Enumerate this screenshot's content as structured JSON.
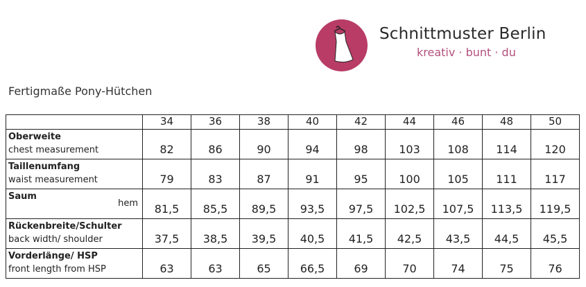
{
  "logo": {
    "brand": "Schnittmuster Berlin",
    "tagline": "kreativ · bunt · du",
    "color": "#b83c66",
    "icon": "dress-on-hanger-icon"
  },
  "title": "Fertigmaße Pony-Hütchen",
  "sizes": [
    "34",
    "36",
    "38",
    "40",
    "42",
    "44",
    "46",
    "48",
    "50"
  ],
  "rows": [
    {
      "de": "Oberweite",
      "en": "chest measurement",
      "values": [
        "82",
        "86",
        "90",
        "94",
        "98",
        "103",
        "108",
        "114",
        "120"
      ]
    },
    {
      "de": "Taillenumfang",
      "en": "waist measurement",
      "values": [
        "79",
        "83",
        "87",
        "91",
        "95",
        "100",
        "105",
        "111",
        "117"
      ]
    },
    {
      "de": "Saum",
      "en_right": "hem",
      "values": [
        "81,5",
        "85,5",
        "89,5",
        "93,5",
        "97,5",
        "102,5",
        "107,5",
        "113,5",
        "119,5"
      ]
    },
    {
      "de": "Rückenbreite/Schulter",
      "en": "back width/ shoulder",
      "values": [
        "37,5",
        "38,5",
        "39,5",
        "40,5",
        "41,5",
        "42,5",
        "43,5",
        "44,5",
        "45,5"
      ]
    },
    {
      "de": "Vorderlänge/ HSP",
      "en": "front length from HSP",
      "values": [
        "63",
        "63",
        "65",
        "66,5",
        "69",
        "70",
        "74",
        "75",
        "76"
      ]
    }
  ]
}
